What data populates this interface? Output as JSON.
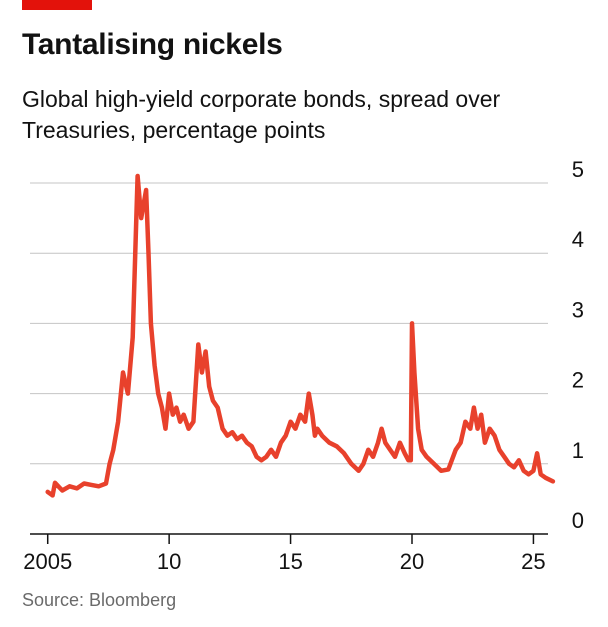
{
  "header": {
    "title": "Tantalising nickels",
    "subtitle": "Global high-yield corporate bonds, spread over Treasuries, percentage points"
  },
  "footer": {
    "source": "Source: Bloomberg"
  },
  "colors": {
    "accent": "#e3120b",
    "line": "#e8412c",
    "grid": "#c4c4c4",
    "axis": "#121212",
    "text": "#121212",
    "source": "#6a6a6a"
  },
  "chart_data": {
    "type": "line",
    "title": "Tantalising nickels",
    "subtitle": "Global high-yield corporate bonds, spread over Treasuries, percentage points",
    "xlabel": "",
    "ylabel": "",
    "xlim": [
      2004.6,
      2027.0
    ],
    "ylim": [
      0,
      5
    ],
    "grid": true,
    "y_axis_side": "right",
    "x_ticks": [
      2005,
      2010,
      2015,
      2020,
      2025
    ],
    "x_tick_labels": [
      "2005",
      "10",
      "15",
      "20",
      "25"
    ],
    "y_ticks": [
      0,
      1,
      2,
      3,
      4,
      5
    ],
    "y_tick_labels": [
      "0",
      "1",
      "2",
      "3",
      "4",
      "5"
    ],
    "series": [
      {
        "x": [
          2005.0,
          2005.2,
          2005.3,
          2005.6,
          2005.9,
          2006.2,
          2006.5,
          2006.8,
          2007.1,
          2007.4,
          2007.55,
          2007.7,
          2007.9,
          2008.1,
          2008.3,
          2008.5,
          2008.7,
          2008.85,
          2009.05,
          2009.15,
          2009.25,
          2009.4,
          2009.55,
          2009.7,
          2009.85,
          2010.0,
          2010.15,
          2010.3,
          2010.45,
          2010.6,
          2010.8,
          2011.0,
          2011.2,
          2011.35,
          2011.5,
          2011.65,
          2011.8,
          2012.0,
          2012.2,
          2012.4,
          2012.6,
          2012.8,
          2013.0,
          2013.2,
          2013.4,
          2013.6,
          2013.8,
          2014.0,
          2014.2,
          2014.4,
          2014.6,
          2014.8,
          2015.0,
          2015.2,
          2015.4,
          2015.6,
          2015.75,
          2015.9,
          2016.0,
          2016.1,
          2016.3,
          2016.6,
          2016.9,
          2017.2,
          2017.5,
          2017.8,
          2018.0,
          2018.2,
          2018.4,
          2018.6,
          2018.75,
          2018.9,
          2019.1,
          2019.3,
          2019.5,
          2019.7,
          2019.85,
          2019.95,
          2020.0,
          2020.1,
          2020.25,
          2020.4,
          2020.6,
          2020.9,
          2021.2,
          2021.5,
          2021.8,
          2022.0,
          2022.2,
          2022.4,
          2022.55,
          2022.7,
          2022.85,
          2023.0,
          2023.2,
          2023.4,
          2023.6,
          2023.8,
          2024.0,
          2024.2,
          2024.4,
          2024.6,
          2024.8,
          2025.0,
          2025.15,
          2025.3,
          2025.5,
          2025.8
        ],
        "values": [
          0.6,
          0.55,
          0.73,
          0.62,
          0.68,
          0.65,
          0.72,
          0.7,
          0.68,
          0.72,
          1.0,
          1.2,
          1.6,
          2.3,
          2.0,
          2.8,
          5.1,
          4.5,
          4.9,
          4.0,
          3.0,
          2.4,
          2.0,
          1.8,
          1.5,
          2.0,
          1.7,
          1.8,
          1.6,
          1.7,
          1.5,
          1.6,
          2.7,
          2.3,
          2.6,
          2.1,
          1.9,
          1.8,
          1.5,
          1.4,
          1.45,
          1.35,
          1.4,
          1.3,
          1.25,
          1.1,
          1.05,
          1.1,
          1.2,
          1.1,
          1.3,
          1.4,
          1.6,
          1.5,
          1.7,
          1.6,
          2.0,
          1.7,
          1.4,
          1.5,
          1.4,
          1.3,
          1.25,
          1.15,
          1.0,
          0.9,
          1.0,
          1.2,
          1.1,
          1.3,
          1.5,
          1.3,
          1.2,
          1.1,
          1.3,
          1.15,
          1.05,
          1.05,
          3.0,
          2.3,
          1.5,
          1.2,
          1.1,
          1.0,
          0.9,
          0.92,
          1.2,
          1.3,
          1.6,
          1.5,
          1.8,
          1.5,
          1.7,
          1.3,
          1.5,
          1.4,
          1.2,
          1.1,
          1.0,
          0.95,
          1.05,
          0.9,
          0.85,
          0.9,
          1.15,
          0.85,
          0.8,
          0.75
        ]
      }
    ]
  }
}
